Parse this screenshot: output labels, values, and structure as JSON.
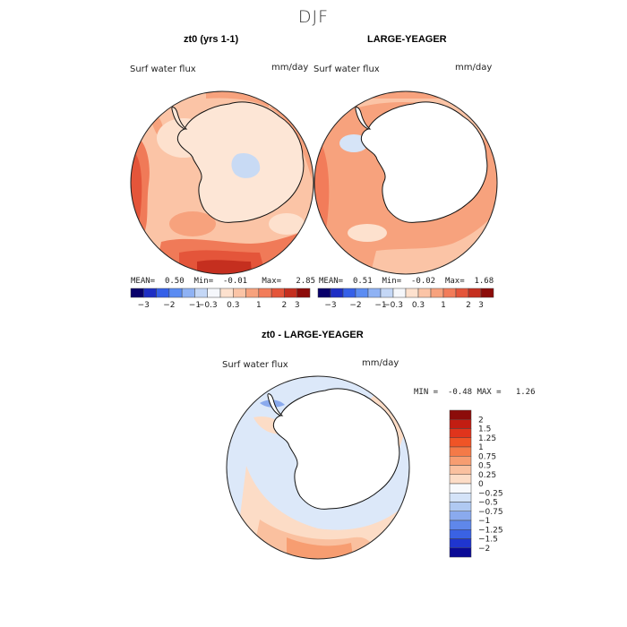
{
  "season": "DJF",
  "panel1": {
    "title": "zt0 (yrs 1-1)",
    "variable": "Surf water flux",
    "units": "mm/day",
    "mean_label": "MEAN=",
    "mean": "0.50",
    "min_label": "Min=",
    "min": "-0.01",
    "max_label": "Max=",
    "max": "2.85"
  },
  "panel2": {
    "title": "LARGE-YEAGER",
    "variable": "Surf water flux",
    "units": "mm/day",
    "mean_label": "MEAN=",
    "mean": "0.51",
    "min_label": "Min=",
    "min": "-0.02",
    "max_label": "Max=",
    "max": "1.68"
  },
  "panel3": {
    "title": "zt0 - LARGE-YEAGER",
    "variable": "Surf water flux",
    "units": "mm/day",
    "min_label": "MIN =",
    "min": "-0.48",
    "max_label": "MAX =",
    "max": "1.26"
  },
  "colorbar_h": {
    "colors": [
      "#08006a",
      "#1e2ec4",
      "#3560e8",
      "#5b8cf2",
      "#8fb2f4",
      "#c4d7f6",
      "#f5f7fb",
      "#fde1ce",
      "#fbc4a6",
      "#f7a27d",
      "#f27c5a",
      "#e4553a",
      "#c52f1f",
      "#8c0c0a"
    ],
    "ticks": [
      "-3",
      "-2",
      "-1",
      "-0.3",
      "0.3",
      "1",
      "2",
      "3"
    ]
  },
  "colorbar_v": {
    "colors": [
      "#8c0c0a",
      "#c21d12",
      "#e0341c",
      "#f05426",
      "#f47a48",
      "#f79d71",
      "#fac09f",
      "#fcdcc6",
      "#f7f9fc",
      "#d4e3f8",
      "#b0c9f2",
      "#8aaaee",
      "#5f87ea",
      "#3a62e4",
      "#1f35cf",
      "#0a0a96"
    ],
    "ticks": [
      "2",
      "1.5",
      "1.25",
      "1",
      "0.75",
      "0.5",
      "0.25",
      "0",
      "-0.25",
      "-0.5",
      "-0.75",
      "-1",
      "-1.25",
      "-1.5",
      "-2"
    ]
  }
}
